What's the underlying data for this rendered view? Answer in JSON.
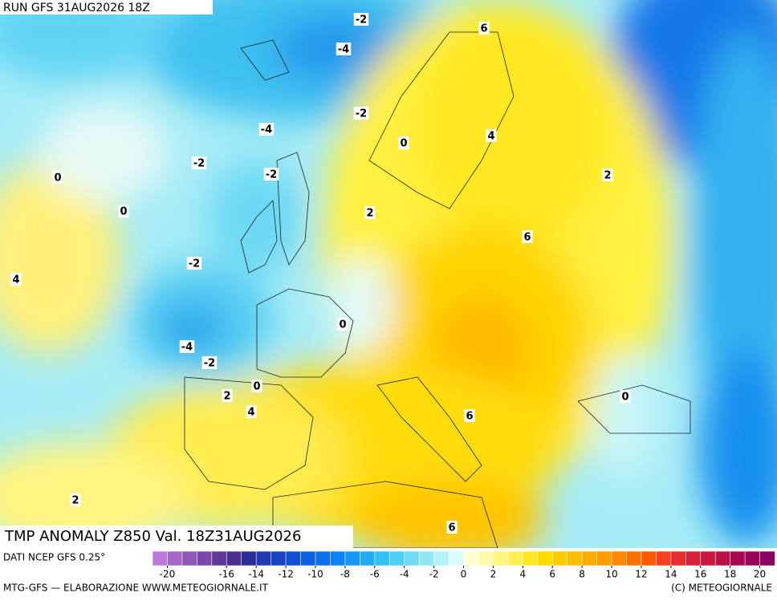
{
  "header": {
    "run": "RUN GFS 31AUG2026 18Z"
  },
  "title": "TMP ANOMALY Z850 Val. 18Z31AUG2026",
  "contour_labels": [
    -2,
    -4,
    6,
    -2,
    -4,
    0,
    4,
    -2,
    -2,
    2,
    0,
    0,
    2,
    6,
    -2,
    4,
    0,
    -4,
    -2,
    0,
    2,
    0,
    4,
    6,
    2,
    6
  ],
  "colorbar": {
    "source": "DATI NCEP GFS 0.25°",
    "lim": [
      -21,
      21
    ],
    "ticks": [
      -20,
      -16,
      -14,
      -12,
      -10,
      -8,
      -6,
      -4,
      -2,
      0,
      2,
      4,
      6,
      8,
      10,
      12,
      14,
      16,
      18,
      20
    ],
    "colors": [
      "#b878d8",
      "#a468c8",
      "#9058b8",
      "#7a48a8",
      "#603898",
      "#48308c",
      "#2c2c98",
      "#2038b0",
      "#1844c4",
      "#1050d4",
      "#0a60e0",
      "#0a70e8",
      "#0a84f0",
      "#1498f4",
      "#20acf4",
      "#34c0f4",
      "#4cd0f4",
      "#6cdcf4",
      "#90e8f4",
      "#b4f2f6",
      "#d8fafa",
      "#ffffd4",
      "#fffaa8",
      "#fff47c",
      "#fff050",
      "#ffe820",
      "#ffdc00",
      "#ffcc00",
      "#ffbc00",
      "#ffac00",
      "#ff9c00",
      "#ff8800",
      "#ff7000",
      "#ff5800",
      "#f84020",
      "#e82c30",
      "#d82038",
      "#c81840",
      "#b81048",
      "#a80850",
      "#980458",
      "#880060"
    ]
  },
  "footer": {
    "left": "MTG-GFS — ELABORAZIONE WWW.METEOGIORNALE.IT",
    "right": "(C) METEOGIORNALE"
  }
}
